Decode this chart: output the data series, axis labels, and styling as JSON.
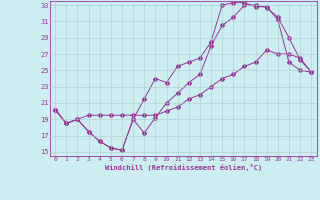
{
  "xlabel": "Windchill (Refroidissement éolien,°C)",
  "bg_color": "#cceef0",
  "line_color": "#993399",
  "xlim": [
    -0.5,
    23.5
  ],
  "ylim": [
    14.5,
    33.5
  ],
  "xticks": [
    0,
    1,
    2,
    3,
    4,
    5,
    6,
    7,
    8,
    9,
    10,
    11,
    12,
    13,
    14,
    15,
    16,
    17,
    18,
    19,
    20,
    21,
    22,
    23
  ],
  "yticks": [
    15,
    17,
    19,
    21,
    23,
    25,
    27,
    29,
    31,
    33
  ],
  "curve1_x": [
    0,
    1,
    2,
    3,
    4,
    5,
    6,
    7,
    8,
    9,
    10,
    11,
    12,
    13,
    14,
    15,
    16,
    17,
    18,
    19,
    20,
    21,
    22,
    23
  ],
  "curve1_y": [
    20.2,
    18.5,
    19.0,
    17.5,
    16.3,
    15.5,
    15.2,
    19.0,
    17.3,
    19.2,
    21.0,
    22.2,
    23.5,
    24.5,
    28.0,
    30.5,
    31.5,
    33.0,
    33.0,
    32.7,
    31.5,
    29.0,
    26.3,
    24.8
  ],
  "curve2_x": [
    0,
    1,
    2,
    3,
    4,
    5,
    6,
    7,
    8,
    9,
    10,
    11,
    12,
    13,
    14,
    15,
    16,
    17,
    18,
    19,
    20,
    21,
    22,
    23
  ],
  "curve2_y": [
    20.2,
    18.5,
    19.0,
    17.5,
    16.3,
    15.5,
    15.2,
    19.0,
    21.5,
    24.0,
    23.5,
    25.5,
    26.0,
    26.5,
    28.5,
    33.0,
    33.3,
    33.3,
    32.8,
    32.8,
    31.2,
    26.0,
    25.0,
    24.8
  ],
  "curve3_x": [
    0,
    1,
    2,
    3,
    4,
    5,
    6,
    7,
    8,
    9,
    10,
    11,
    12,
    13,
    14,
    15,
    16,
    17,
    18,
    19,
    20,
    21,
    22,
    23
  ],
  "curve3_y": [
    20.2,
    18.5,
    19.0,
    19.5,
    19.5,
    19.5,
    19.5,
    19.5,
    19.5,
    19.5,
    20.0,
    20.5,
    21.5,
    22.0,
    23.0,
    24.0,
    24.5,
    25.5,
    26.0,
    27.5,
    27.0,
    27.0,
    26.5,
    24.8
  ]
}
